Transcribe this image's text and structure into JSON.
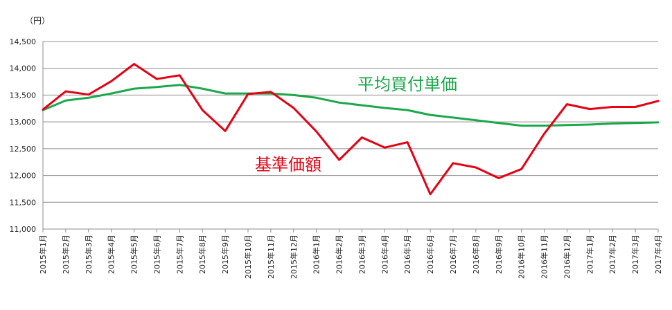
{
  "chart_data": {
    "type": "line",
    "unit_label": "（円）",
    "ylim": [
      11000,
      14500
    ],
    "y_ticks": [
      "14,500",
      "14,000",
      "13,500",
      "13,000",
      "12,500",
      "12,000",
      "11,500",
      "11,000"
    ],
    "y_tick_values": [
      14500,
      14000,
      13500,
      13000,
      12500,
      12000,
      11500,
      11000
    ],
    "grid": true,
    "categories": [
      "2015年1月",
      "2015年2月",
      "2015年3月",
      "2015年4月",
      "2015年5月",
      "2015年6月",
      "2015年7月",
      "2015年8月",
      "2015年9月",
      "2015年10月",
      "2015年11月",
      "2015年12月",
      "2016年1月",
      "2016年2月",
      "2016年3月",
      "2016年4月",
      "2016年5月",
      "2016年6月",
      "2016年7月",
      "2016年8月",
      "2016年9月",
      "2016年10月",
      "2016年11月",
      "2016年12月",
      "2017年1月",
      "2017年2月",
      "2017年3月",
      "2017年4月"
    ],
    "series": [
      {
        "name": "基準価額",
        "color": "#e60012",
        "values": [
          13230,
          13570,
          13510,
          13760,
          14080,
          13800,
          13870,
          13220,
          12830,
          13520,
          13560,
          13260,
          12820,
          12290,
          12710,
          12520,
          12620,
          11650,
          12230,
          12150,
          11950,
          12120,
          12780,
          13330,
          13240,
          13280,
          13280,
          13390
        ]
      },
      {
        "name": "平均買付単価",
        "color": "#1aa84a",
        "values": [
          13220,
          13400,
          13450,
          13530,
          13620,
          13650,
          13690,
          13620,
          13530,
          13530,
          13530,
          13500,
          13450,
          13360,
          13310,
          13260,
          13220,
          13130,
          13080,
          13030,
          12980,
          12930,
          12930,
          12940,
          12950,
          12970,
          12980,
          12990
        ]
      }
    ]
  }
}
